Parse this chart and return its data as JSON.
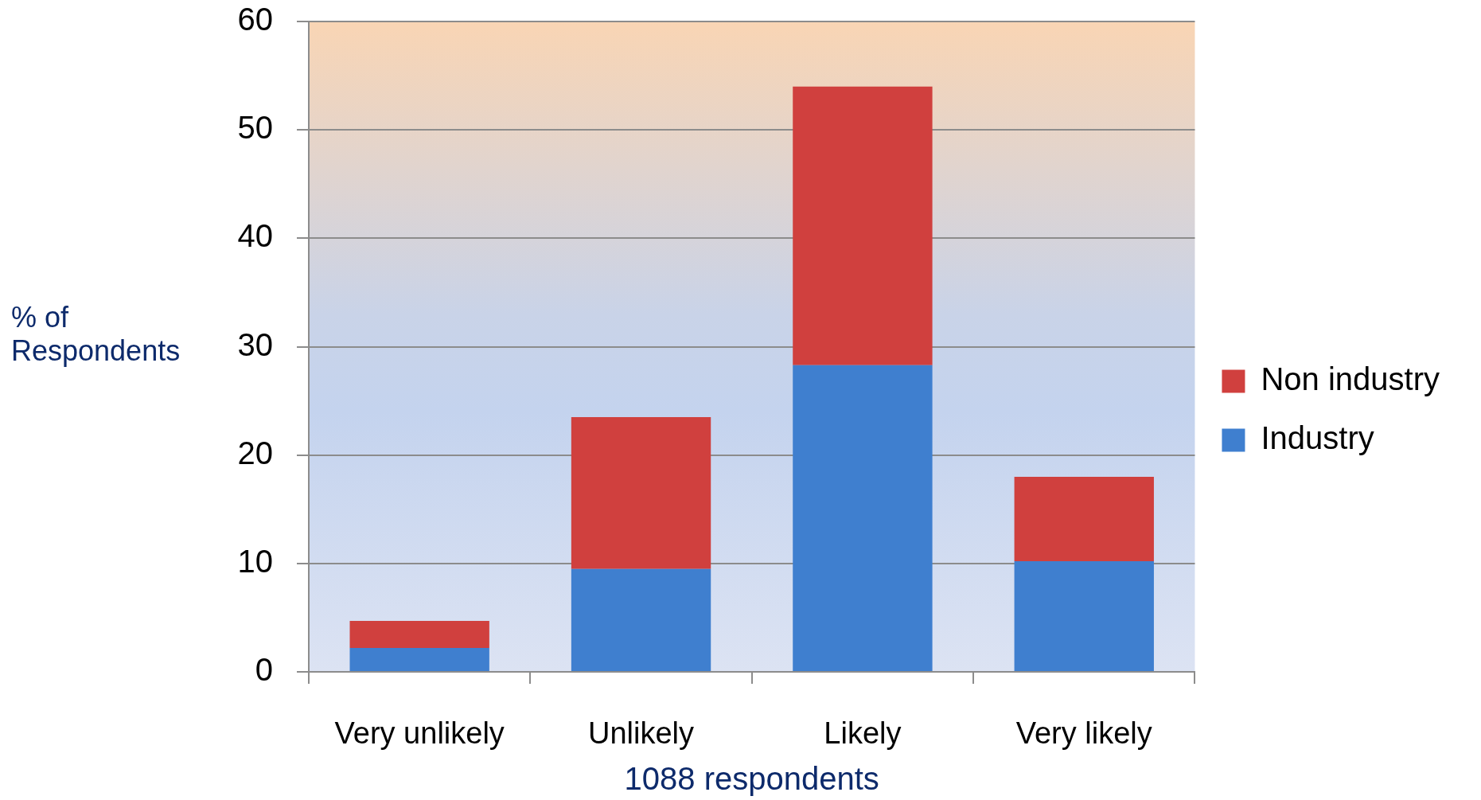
{
  "chart_data": {
    "type": "bar",
    "stacked": true,
    "xlabel": "1088 respondents",
    "ylabel": "% of Respondents",
    "categories": [
      "Very unlikely",
      "Unlikely",
      "Likely",
      "Very likely"
    ],
    "series": [
      {
        "name": "Industry",
        "color": "#3f7fcf",
        "values": [
          2.2,
          9.5,
          28.3,
          10.2
        ]
      },
      {
        "name": "Non industry",
        "color": "#d0403e",
        "values": [
          2.5,
          14.0,
          25.7,
          7.8
        ]
      }
    ],
    "ylim": [
      0,
      60
    ],
    "yticks": [
      0,
      10,
      20,
      30,
      40,
      50,
      60
    ],
    "grid": "y",
    "legend": "right"
  }
}
